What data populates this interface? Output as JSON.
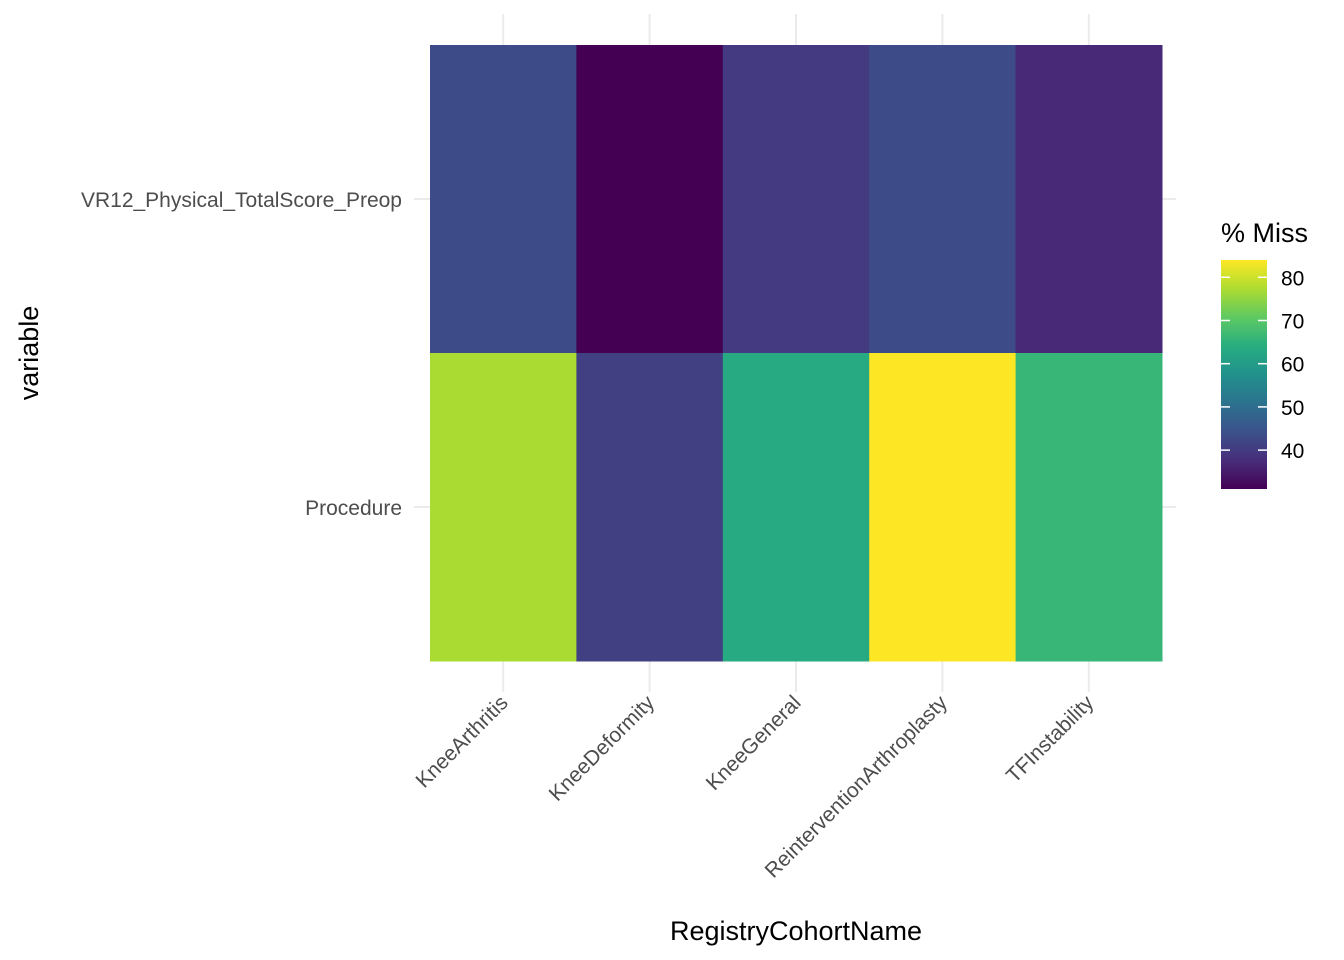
{
  "chart_data": {
    "type": "heatmap",
    "title": "",
    "xlabel": "RegistryCohortName",
    "ylabel": "variable",
    "x_categories": [
      "KneeArthritis",
      "KneeDeformity",
      "KneeGeneral",
      "ReinterventionArthroplasty",
      "TFInstability"
    ],
    "y_categories": [
      "VR12_Physical_TotalScore_Preop",
      "Procedure"
    ],
    "values": [
      [
        43,
        31,
        40,
        43,
        37
      ],
      [
        77,
        41,
        63,
        84,
        66
      ]
    ],
    "colorbar": {
      "title": "% Miss",
      "range": [
        31,
        84
      ],
      "ticks": [
        40,
        50,
        60,
        70,
        80
      ],
      "palette": "viridis"
    },
    "grid": true,
    "legend_position": "right"
  }
}
